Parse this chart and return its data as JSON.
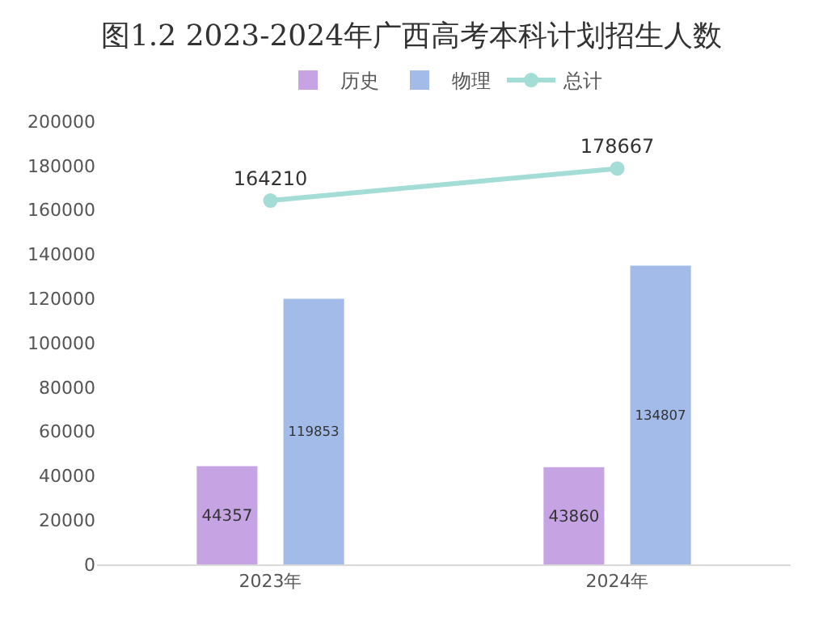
{
  "chart_data": {
    "type": "bar",
    "title": "图1.2 2023-2024年广西高考本科计划招生人数",
    "categories": [
      "2023年",
      "2024年"
    ],
    "series": [
      {
        "name": "历史",
        "color": "#c6a4e4",
        "values": [
          44357,
          43860
        ]
      },
      {
        "name": "物理",
        "color": "#a3bbe9",
        "values": [
          119853,
          134807
        ]
      },
      {
        "name": "总计",
        "type": "line",
        "color": "#a4ddd6",
        "values": [
          164210,
          178667
        ]
      }
    ],
    "ylim": [
      0,
      200000
    ],
    "yticks": [
      0,
      20000,
      40000,
      60000,
      80000,
      100000,
      120000,
      140000,
      160000,
      180000,
      200000
    ],
    "grid": false,
    "legend": "top",
    "marker": "circle",
    "line_style": "solid",
    "data_labels": true
  }
}
